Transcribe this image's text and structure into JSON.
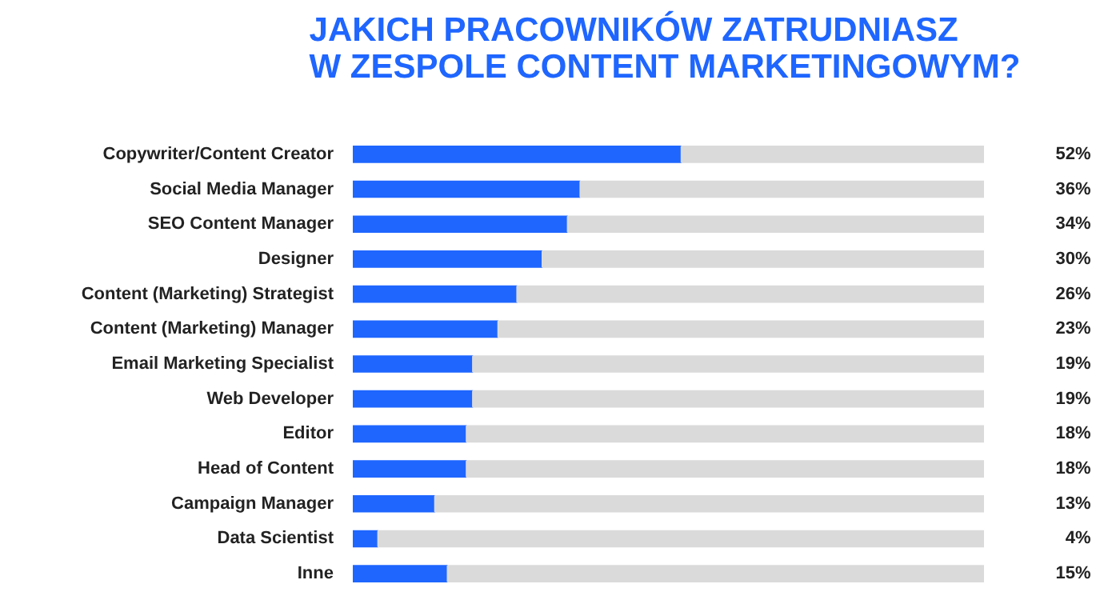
{
  "chart_data": {
    "type": "bar",
    "orientation": "horizontal",
    "stacked": true,
    "title": "JAKICH PRACOWNIKÓW ZATRUDNIASZ\nW ZESPOLE CONTENT MARKETINGOWYM?",
    "categories": [
      "Copywriter/Content Creator",
      "Social Media Manager",
      "SEO Content Manager",
      "Designer",
      "Content (Marketing) Strategist",
      "Content (Marketing) Manager",
      "Email Marketing Specialist",
      "Web Developer",
      "Editor",
      "Head of Content",
      "Campaign Manager",
      "Data Scientist",
      "Inne"
    ],
    "series": [
      {
        "color": "#1f66ff",
        "values": [
          52,
          36,
          34,
          30,
          26,
          23,
          19,
          19,
          18,
          18,
          13,
          4,
          15
        ],
        "value_labels": [
          "52%",
          "36%",
          "34%",
          "30%",
          "26%",
          "23%",
          "19%",
          "19%",
          "18%",
          "18%",
          "13%",
          "4%",
          "15%"
        ]
      },
      {
        "color": "#dadada",
        "values": [
          48,
          64,
          66,
          70,
          74,
          77,
          81,
          81,
          82,
          82,
          87,
          96,
          85
        ]
      }
    ],
    "xlim": [
      0,
      100
    ],
    "grid": false,
    "tick_labels": "y"
  }
}
